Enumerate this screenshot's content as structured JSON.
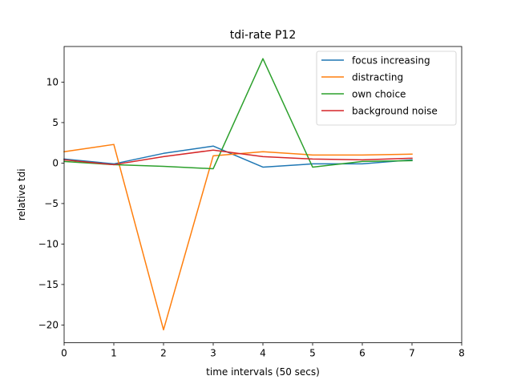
{
  "chart_data": {
    "type": "line",
    "title": "tdi-rate P12",
    "xlabel": "time intervals (50 secs)",
    "ylabel": "relative tdi",
    "xlim": [
      0,
      8
    ],
    "ylim": [
      -22.2,
      14.4
    ],
    "xticks": [
      0,
      1,
      2,
      3,
      4,
      5,
      6,
      7,
      8
    ],
    "yticks": [
      -20,
      -15,
      -10,
      -5,
      0,
      5,
      10
    ],
    "ytick_labels": [
      "−20",
      "−15",
      "−10",
      "−5",
      "0",
      "5",
      "10"
    ],
    "grid": false,
    "legend_position": "top-right",
    "x": [
      0,
      1,
      2,
      3,
      4,
      5,
      6,
      7
    ],
    "series": [
      {
        "name": "focus increasing",
        "color": "#1f77b4",
        "values": [
          0.5,
          -0.1,
          1.2,
          2.1,
          -0.5,
          -0.1,
          -0.1,
          0.4
        ]
      },
      {
        "name": "distracting",
        "color": "#ff7f0e",
        "values": [
          1.4,
          2.3,
          -20.6,
          0.9,
          1.4,
          1.0,
          1.0,
          1.1
        ]
      },
      {
        "name": "own choice",
        "color": "#2ca02c",
        "values": [
          0.2,
          -0.2,
          -0.4,
          -0.7,
          12.9,
          -0.5,
          0.2,
          0.3
        ]
      },
      {
        "name": "background noise",
        "color": "#d62728",
        "values": [
          0.4,
          -0.2,
          0.8,
          1.6,
          0.8,
          0.5,
          0.4,
          0.6
        ]
      }
    ]
  }
}
